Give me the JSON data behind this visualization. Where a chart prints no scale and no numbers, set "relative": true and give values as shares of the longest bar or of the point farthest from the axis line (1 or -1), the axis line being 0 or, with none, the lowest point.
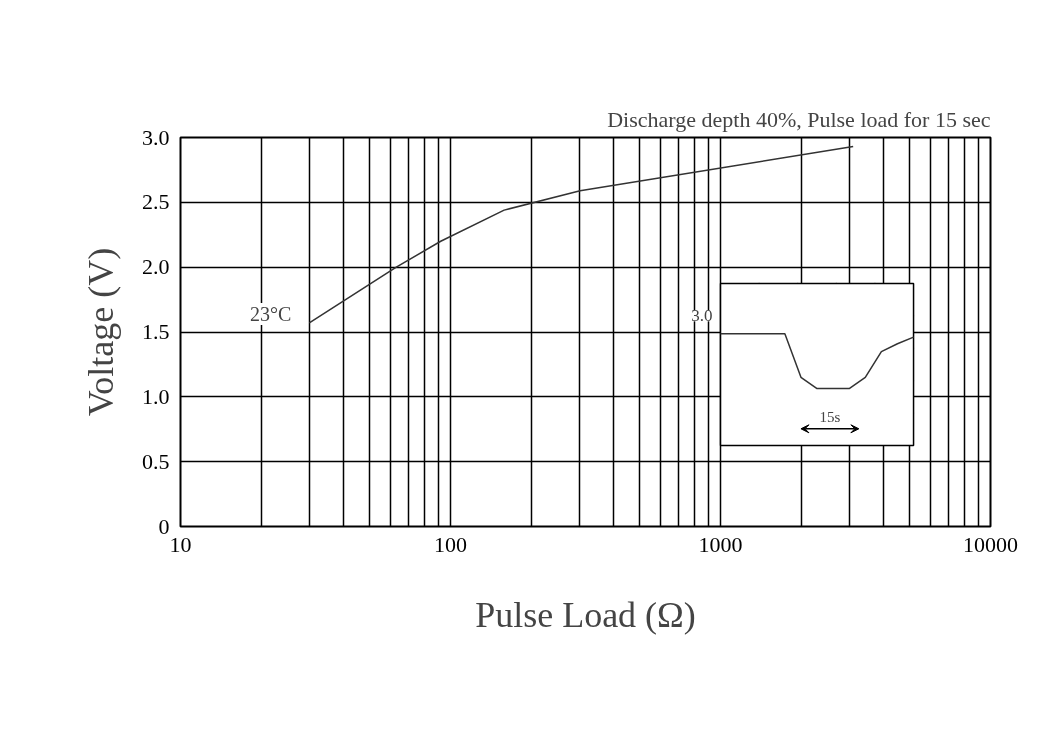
{
  "chart_data": [
    {
      "type": "line",
      "title": "Discharge depth 40%, Pulse load for 15 sec",
      "xlabel": "Pulse Load (Ω)",
      "ylabel": "Voltage (V)",
      "log": "x",
      "grid": true,
      "x": [
        30,
        63,
        92,
        158,
        302,
        3100
      ],
      "series": [
        {
          "color": "#333333",
          "values": [
            1.57,
            2.0,
            2.2,
            2.44,
            2.59,
            2.93
          ]
        }
      ],
      "xlim": [
        10,
        10000
      ],
      "xticks": [
        10,
        100,
        1000,
        10000
      ],
      "ylim": [
        0,
        3
      ],
      "yticks": [
        0,
        {
          "value": 0.5,
          "label": "0.5"
        },
        {
          "value": 1,
          "label": "1.0"
        },
        {
          "value": 1.5,
          "label": "1.5"
        },
        {
          "value": 2,
          "label": "2.0"
        },
        {
          "value": 2.5,
          "label": "2.5"
        },
        {
          "value": 3,
          "label": "3.0"
        }
      ],
      "annotations": [
        {
          "text": "23°C",
          "x": 30,
          "y": 1.57
        }
      ]
    },
    {
      "type": "line",
      "relative": true,
      "grid": true,
      "categories": [
        null,
        null,
        null,
        null,
        null,
        null,
        null,
        null,
        null,
        null,
        null,
        null,
        null
      ],
      "series": [
        {
          "color": "#333333",
          "values": [
            1,
            1,
            1,
            1,
            1,
            0.61,
            0.51,
            0.51,
            0.51,
            0.61,
            0.84,
            0.91,
            0.97
          ]
        }
      ],
      "annotations": [
        "3.0",
        "15s"
      ]
    }
  ]
}
